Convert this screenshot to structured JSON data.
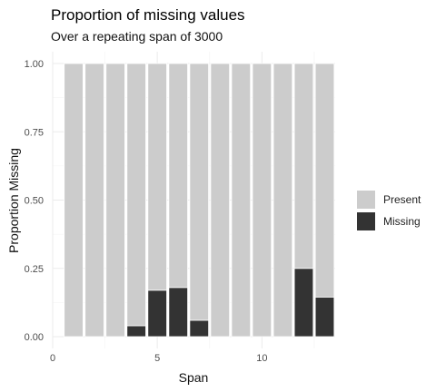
{
  "chart_data": {
    "type": "bar",
    "stacked": true,
    "title": "Proportion of missing values",
    "subtitle": "Over a repeating span of 3000",
    "xlabel": "Span",
    "ylabel": "Proportion Missing",
    "xlim": [
      0,
      13.5
    ],
    "ylim": [
      0,
      1
    ],
    "x_ticks": [
      0,
      5,
      10
    ],
    "x_tick_labels": [
      "0",
      "5",
      "10"
    ],
    "y_ticks": [
      0,
      0.25,
      0.5,
      0.75,
      1
    ],
    "y_tick_labels": [
      "0.00",
      "0.25",
      "0.50",
      "0.75",
      "1.00"
    ],
    "grid": true,
    "legend_position": "right",
    "x": [
      1,
      2,
      3,
      4,
      5,
      6,
      7,
      8,
      9,
      10,
      11,
      12,
      13
    ],
    "series": [
      {
        "name": "Present",
        "color": "#cccccc",
        "values": [
          1.0,
          1.0,
          1.0,
          0.96,
          0.83,
          0.82,
          0.94,
          1.0,
          1.0,
          1.0,
          1.0,
          0.75,
          0.855
        ]
      },
      {
        "name": "Missing",
        "color": "#333333",
        "values": [
          0.0,
          0.0,
          0.0,
          0.04,
          0.17,
          0.18,
          0.06,
          0.0,
          0.0,
          0.0,
          0.0,
          0.25,
          0.145
        ]
      }
    ]
  }
}
